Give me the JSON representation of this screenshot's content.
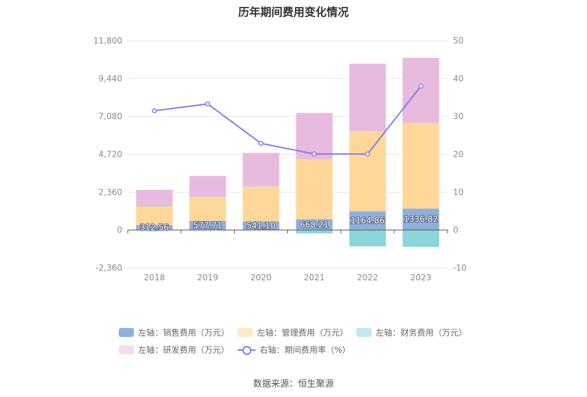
{
  "chart_data": {
    "type": "bar",
    "title": "历年期间费用变化情况",
    "categories": [
      "2018",
      "2019",
      "2020",
      "2021",
      "2022",
      "2023"
    ],
    "left_axis": {
      "ylim": [
        -2360,
        11800
      ],
      "ticks": [
        "-2,360",
        "0",
        "2,360",
        "4,720",
        "7,080",
        "9,440",
        "11,800"
      ]
    },
    "right_axis": {
      "ylim": [
        -10,
        50
      ],
      "ticks": [
        "-10",
        "0",
        "10",
        "20",
        "30",
        "40",
        "50"
      ]
    },
    "stacked": true,
    "series": [
      {
        "name": "左轴：销售费用（万元）",
        "axis": "left",
        "color": "#8fb0de",
        "values": [
          312.56,
          577.71,
          541.1,
          668.21,
          1164.86,
          1336.82
        ],
        "labels": [
          "312.56",
          "577.71",
          "541.10",
          "668.21",
          "1164.86",
          "1336.82"
        ]
      },
      {
        "name": "左轴：管理费用（万元）",
        "axis": "left",
        "color": "#ffd899",
        "values": [
          1170,
          1490,
          2170,
          3750,
          5000,
          5350
        ]
      },
      {
        "name": "左轴：财务费用（万元）",
        "axis": "left",
        "color": "#8ad6d9",
        "values": [
          60,
          20,
          15,
          -210,
          -1020,
          -1050
        ]
      },
      {
        "name": "左轴：研发费用（万元）",
        "axis": "left",
        "color": "#e8bade",
        "values": [
          960,
          1280,
          2080,
          2880,
          4200,
          4050
        ]
      },
      {
        "name": "右轴：期间费用率（%）",
        "axis": "right",
        "type": "line",
        "color": "#7b7fea",
        "values": [
          31.5,
          33.3,
          22.9,
          20.1,
          20.1,
          38.0
        ]
      }
    ],
    "legend_position": "bottom",
    "grid": true
  },
  "legend": {
    "items": [
      {
        "label": "左轴：销售费用（万元）",
        "color": "#8fb0de",
        "kind": "box"
      },
      {
        "label": "左轴：管理费用（万元）",
        "color": "#ffe9c7",
        "kind": "box"
      },
      {
        "label": "左轴：财务费用（万元）",
        "color": "#bfe9ea",
        "kind": "box"
      },
      {
        "label": "左轴：研发费用（万元）",
        "color": "#f5dcef",
        "kind": "box"
      },
      {
        "label": "右轴：期间费用率（%）",
        "color": "#7b7fea",
        "kind": "line"
      }
    ]
  },
  "source": "数据来源：恒生聚源"
}
